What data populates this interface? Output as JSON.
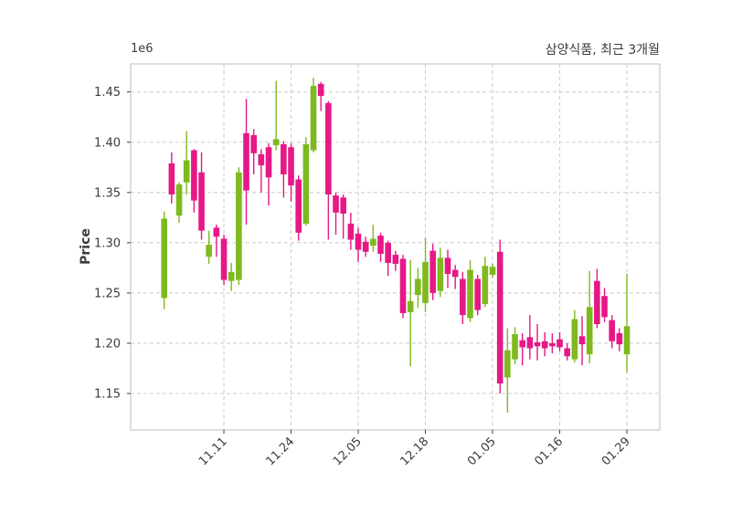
{
  "figure": {
    "title": "삼양식품, 최근 3개월",
    "ylabel": "Price",
    "offset_label": "1e6"
  },
  "chart_data": {
    "type": "candlestick",
    "title": "삼양식품, 최근 3개월",
    "ylabel": "Price",
    "y_offset_label": "1e6",
    "unit_multiplier": 1000000,
    "grid": true,
    "legend_position": "none",
    "up_color": "#7EB91E",
    "down_color": "#E51886",
    "grid_color": "#cfcfcf",
    "spine_color": "#c9c9c9",
    "tick_text_color": "#3c3c3c",
    "ylim": [
      1.114,
      1.478
    ],
    "yticks": [
      1.15,
      1.2,
      1.25,
      1.3,
      1.35,
      1.4,
      1.45
    ],
    "xticks": [
      {
        "index": 8,
        "label": "11.11"
      },
      {
        "index": 17,
        "label": "11.24"
      },
      {
        "index": 26,
        "label": "12.05"
      },
      {
        "index": 35,
        "label": "12.18"
      },
      {
        "index": 44,
        "label": "01.05"
      },
      {
        "index": 53,
        "label": "01.16"
      },
      {
        "index": 62,
        "label": "01.29"
      }
    ],
    "candles_ohlc": [
      [
        1.245,
        1.331,
        1.234,
        1.324
      ],
      [
        1.379,
        1.39,
        1.339,
        1.348
      ],
      [
        1.327,
        1.36,
        1.32,
        1.358
      ],
      [
        1.36,
        1.411,
        1.348,
        1.382
      ],
      [
        1.392,
        1.393,
        1.33,
        1.342
      ],
      [
        1.37,
        1.39,
        1.303,
        1.312
      ],
      [
        1.286,
        1.312,
        1.279,
        1.298
      ],
      [
        1.315,
        1.318,
        1.286,
        1.306
      ],
      [
        1.304,
        1.308,
        1.258,
        1.263
      ],
      [
        1.262,
        1.28,
        1.252,
        1.271
      ],
      [
        1.263,
        1.375,
        1.258,
        1.37
      ],
      [
        1.409,
        1.443,
        1.318,
        1.352
      ],
      [
        1.407,
        1.413,
        1.368,
        1.389
      ],
      [
        1.388,
        1.393,
        1.35,
        1.377
      ],
      [
        1.395,
        1.399,
        1.337,
        1.365
      ],
      [
        1.397,
        1.461,
        1.392,
        1.403
      ],
      [
        1.398,
        1.401,
        1.345,
        1.368
      ],
      [
        1.395,
        1.399,
        1.341,
        1.357
      ],
      [
        1.363,
        1.367,
        1.302,
        1.31
      ],
      [
        1.319,
        1.405,
        1.317,
        1.398
      ],
      [
        1.392,
        1.464,
        1.39,
        1.456
      ],
      [
        1.458,
        1.46,
        1.431,
        1.446
      ],
      [
        1.439,
        1.441,
        1.303,
        1.348
      ],
      [
        1.347,
        1.35,
        1.308,
        1.33
      ],
      [
        1.345,
        1.348,
        1.304,
        1.329
      ],
      [
        1.319,
        1.33,
        1.293,
        1.303
      ],
      [
        1.309,
        1.315,
        1.281,
        1.293
      ],
      [
        1.301,
        1.306,
        1.286,
        1.291
      ],
      [
        1.297,
        1.318,
        1.291,
        1.304
      ],
      [
        1.307,
        1.31,
        1.281,
        1.289
      ],
      [
        1.3,
        1.302,
        1.267,
        1.28
      ],
      [
        1.288,
        1.292,
        1.272,
        1.279
      ],
      [
        1.284,
        1.288,
        1.225,
        1.23
      ],
      [
        1.231,
        1.283,
        1.177,
        1.242
      ],
      [
        1.248,
        1.275,
        1.235,
        1.264
      ],
      [
        1.24,
        1.305,
        1.231,
        1.281
      ],
      [
        1.292,
        1.299,
        1.243,
        1.25
      ],
      [
        1.252,
        1.295,
        1.246,
        1.285
      ],
      [
        1.285,
        1.293,
        1.255,
        1.269
      ],
      [
        1.273,
        1.278,
        1.254,
        1.266
      ],
      [
        1.264,
        1.271,
        1.219,
        1.228
      ],
      [
        1.225,
        1.283,
        1.221,
        1.273
      ],
      [
        1.264,
        1.268,
        1.228,
        1.233
      ],
      [
        1.239,
        1.286,
        1.236,
        1.277
      ],
      [
        1.268,
        1.279,
        1.265,
        1.276
      ],
      [
        1.291,
        1.303,
        1.15,
        1.16
      ],
      [
        1.166,
        1.215,
        1.131,
        1.193
      ],
      [
        1.184,
        1.216,
        1.179,
        1.209
      ],
      [
        1.203,
        1.21,
        1.178,
        1.196
      ],
      [
        1.206,
        1.228,
        1.184,
        1.195
      ],
      [
        1.201,
        1.219,
        1.183,
        1.197
      ],
      [
        1.202,
        1.211,
        1.187,
        1.195
      ],
      [
        1.2,
        1.21,
        1.19,
        1.197
      ],
      [
        1.204,
        1.211,
        1.192,
        1.196
      ],
      [
        1.195,
        1.2,
        1.183,
        1.187
      ],
      [
        1.184,
        1.233,
        1.181,
        1.224
      ],
      [
        1.207,
        1.227,
        1.178,
        1.199
      ],
      [
        1.189,
        1.272,
        1.18,
        1.236
      ],
      [
        1.262,
        1.274,
        1.215,
        1.219
      ],
      [
        1.247,
        1.255,
        1.221,
        1.226
      ],
      [
        1.223,
        1.228,
        1.195,
        1.202
      ],
      [
        1.21,
        1.215,
        1.192,
        1.199
      ],
      [
        1.189,
        1.269,
        1.171,
        1.217
      ]
    ]
  }
}
